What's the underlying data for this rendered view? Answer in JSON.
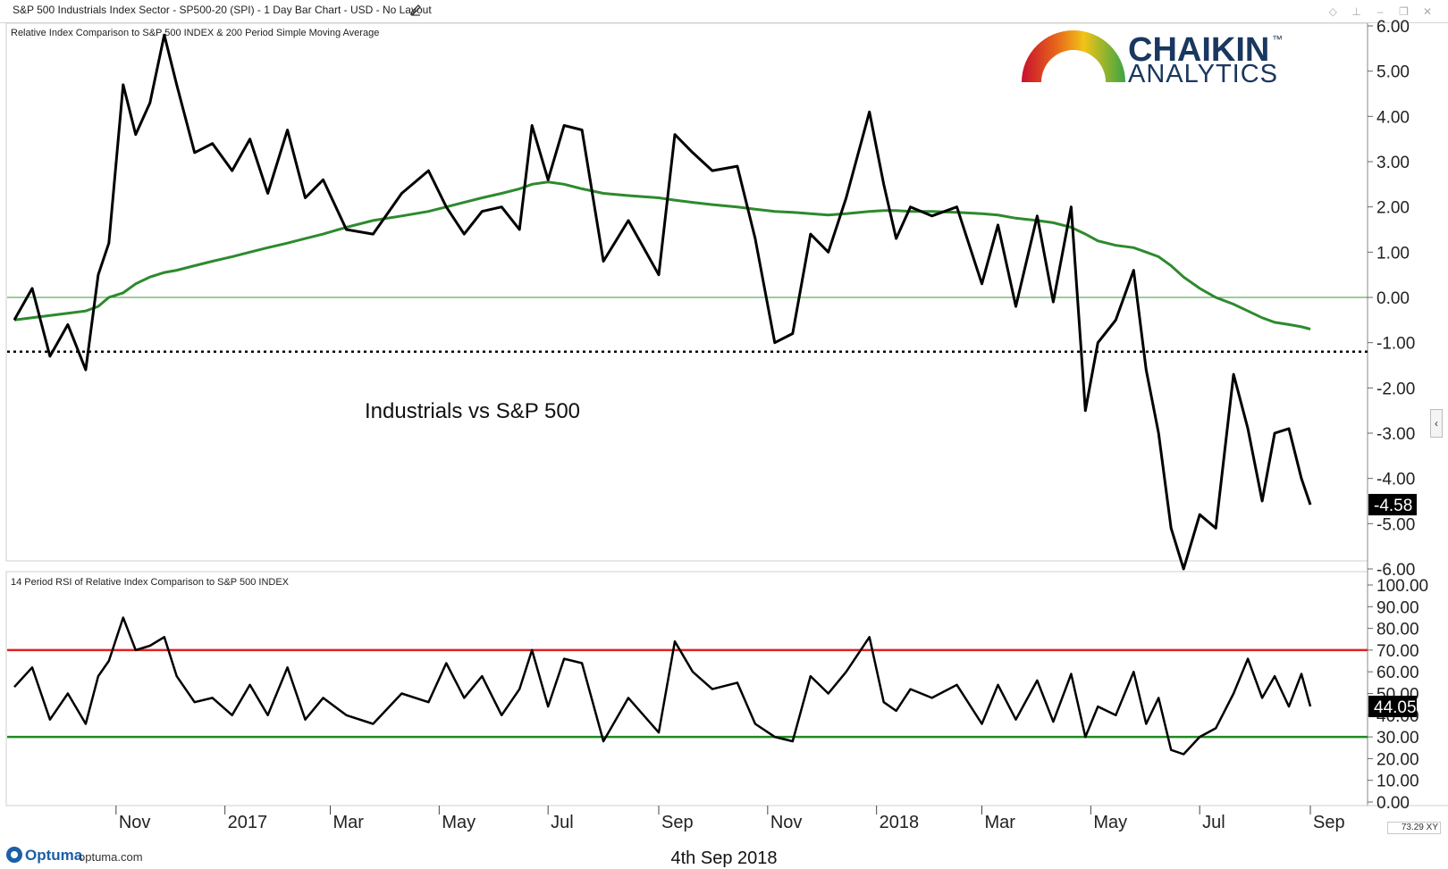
{
  "window": {
    "title": "S&P 500 Industrials Index Sector - SP500-20 (SPI) - 1 Day Bar Chart - USD - No Layout"
  },
  "logo": {
    "brand_top": "CHAIKIN",
    "brand_bottom": "ANALYTICS",
    "trademark": "™"
  },
  "footer": {
    "brand": "Optuma",
    "url": "optuma.com",
    "date": "4th Sep 2018",
    "zoom": "73.29",
    "xy_label": "XY"
  },
  "colors": {
    "price_line": "#000000",
    "sma_line": "#2d8a2d",
    "zero_line": "#3a9a3a",
    "overbought_line": "#e02020",
    "oversold_line": "#1f8a1f",
    "axis_text": "#222222"
  },
  "chart_data": [
    {
      "type": "line",
      "title": "Relative Index Comparison to S&P 500 INDEX & 200 Period Simple Moving Average",
      "annotation": "Industrials vs S&P 500",
      "ylim": [
        -6,
        6
      ],
      "y_ticks": [
        "6.00",
        "5.00",
        "4.00",
        "3.00",
        "2.00",
        "1.00",
        "0.00",
        "-1.00",
        "-2.00",
        "-3.00",
        "-4.00",
        "-5.00",
        "-6.00"
      ],
      "last_value_label": "-4.58",
      "reference_lines": [
        {
          "y": 0.0,
          "style": "solid",
          "color": "green"
        },
        {
          "y": -1.2,
          "style": "dotted",
          "color": "black"
        }
      ],
      "x_ticks": [
        "Nov",
        "2017",
        "Mar",
        "May",
        "Jul",
        "Sep",
        "Nov",
        "2018",
        "Mar",
        "May",
        "Jul",
        "Sep"
      ],
      "x": [
        "2016-09-05",
        "2016-09-15",
        "2016-09-25",
        "2016-10-05",
        "2016-10-15",
        "2016-10-22",
        "2016-10-28",
        "2016-11-05",
        "2016-11-12",
        "2016-11-20",
        "2016-11-28",
        "2016-12-05",
        "2016-12-15",
        "2016-12-25",
        "2017-01-05",
        "2017-01-15",
        "2017-01-25",
        "2017-02-05",
        "2017-02-15",
        "2017-02-25",
        "2017-03-10",
        "2017-03-25",
        "2017-04-10",
        "2017-04-25",
        "2017-05-05",
        "2017-05-15",
        "2017-05-25",
        "2017-06-05",
        "2017-06-15",
        "2017-06-22",
        "2017-07-01",
        "2017-07-10",
        "2017-07-20",
        "2017-08-01",
        "2017-08-15",
        "2017-09-01",
        "2017-09-10",
        "2017-09-20",
        "2017-10-01",
        "2017-10-15",
        "2017-10-25",
        "2017-11-05",
        "2017-11-15",
        "2017-11-25",
        "2017-12-05",
        "2017-12-15",
        "2017-12-28",
        "2018-01-05",
        "2018-01-12",
        "2018-01-20",
        "2018-02-01",
        "2018-02-15",
        "2018-03-01",
        "2018-03-10",
        "2018-03-20",
        "2018-04-01",
        "2018-04-10",
        "2018-04-20",
        "2018-04-28",
        "2018-05-05",
        "2018-05-15",
        "2018-05-25",
        "2018-06-01",
        "2018-06-08",
        "2018-06-15",
        "2018-06-22",
        "2018-07-01",
        "2018-07-10",
        "2018-07-20",
        "2018-07-28",
        "2018-08-05",
        "2018-08-12",
        "2018-08-20",
        "2018-08-27",
        "2018-09-01"
      ],
      "series": [
        {
          "values": [
            -0.5,
            0.2,
            -1.3,
            -0.6,
            -1.6,
            0.5,
            1.2,
            4.7,
            3.6,
            4.3,
            5.8,
            4.7,
            3.2,
            3.4,
            2.8,
            3.5,
            2.3,
            3.7,
            2.2,
            2.6,
            1.5,
            1.4,
            2.3,
            2.8,
            2.0,
            1.4,
            1.9,
            2.0,
            1.5,
            3.8,
            2.6,
            3.8,
            3.7,
            0.8,
            1.7,
            0.5,
            3.6,
            3.2,
            2.8,
            2.9,
            1.3,
            -1.0,
            -0.8,
            1.4,
            1.0,
            2.2,
            4.1,
            2.5,
            1.3,
            2.0,
            1.8,
            2.0,
            0.3,
            1.6,
            -0.2,
            1.8,
            -0.1,
            2.0,
            -2.5,
            -1.0,
            -0.5,
            0.6,
            -1.6,
            -3.0,
            -5.1,
            -6.0,
            -4.8,
            -5.1,
            -1.7,
            -2.9,
            -4.5,
            -3.0,
            -2.9,
            -4.0,
            -4.58
          ]
        },
        {
          "values": [
            -0.5,
            -0.45,
            -0.4,
            -0.35,
            -0.3,
            -0.2,
            0.0,
            0.1,
            0.3,
            0.45,
            0.55,
            0.6,
            0.7,
            0.8,
            0.9,
            1.0,
            1.1,
            1.2,
            1.3,
            1.4,
            1.55,
            1.7,
            1.8,
            1.9,
            2.0,
            2.1,
            2.2,
            2.3,
            2.4,
            2.5,
            2.55,
            2.5,
            2.4,
            2.3,
            2.25,
            2.2,
            2.15,
            2.1,
            2.05,
            2.0,
            1.95,
            1.9,
            1.88,
            1.85,
            1.82,
            1.85,
            1.9,
            1.92,
            1.92,
            1.9,
            1.9,
            1.88,
            1.85,
            1.82,
            1.75,
            1.7,
            1.65,
            1.55,
            1.4,
            1.25,
            1.15,
            1.1,
            1.0,
            0.9,
            0.7,
            0.45,
            0.2,
            0.0,
            -0.15,
            -0.3,
            -0.45,
            -0.55,
            -0.6,
            -0.65,
            -0.7
          ]
        }
      ]
    },
    {
      "type": "line",
      "title": "14 Period RSI of Relative Index Comparison to S&P 500 INDEX",
      "ylim": [
        0,
        100
      ],
      "y_ticks": [
        "100.00",
        "90.00",
        "80.00",
        "70.00",
        "60.00",
        "50.00",
        "40.00",
        "30.00",
        "20.00",
        "10.00",
        "0.00"
      ],
      "last_value_label": "44.05",
      "reference_lines": [
        {
          "y": 70,
          "style": "solid",
          "color": "red"
        },
        {
          "y": 30,
          "style": "solid",
          "color": "green"
        }
      ],
      "x": [
        "2016-09-05",
        "2016-09-15",
        "2016-09-25",
        "2016-10-05",
        "2016-10-15",
        "2016-10-22",
        "2016-10-28",
        "2016-11-05",
        "2016-11-12",
        "2016-11-20",
        "2016-11-28",
        "2016-12-05",
        "2016-12-15",
        "2016-12-25",
        "2017-01-05",
        "2017-01-15",
        "2017-01-25",
        "2017-02-05",
        "2017-02-15",
        "2017-02-25",
        "2017-03-10",
        "2017-03-25",
        "2017-04-10",
        "2017-04-25",
        "2017-05-05",
        "2017-05-15",
        "2017-05-25",
        "2017-06-05",
        "2017-06-15",
        "2017-06-22",
        "2017-07-01",
        "2017-07-10",
        "2017-07-20",
        "2017-08-01",
        "2017-08-15",
        "2017-09-01",
        "2017-09-10",
        "2017-09-20",
        "2017-10-01",
        "2017-10-15",
        "2017-10-25",
        "2017-11-05",
        "2017-11-15",
        "2017-11-25",
        "2017-12-05",
        "2017-12-15",
        "2017-12-28",
        "2018-01-05",
        "2018-01-12",
        "2018-01-20",
        "2018-02-01",
        "2018-02-15",
        "2018-03-01",
        "2018-03-10",
        "2018-03-20",
        "2018-04-01",
        "2018-04-10",
        "2018-04-20",
        "2018-04-28",
        "2018-05-05",
        "2018-05-15",
        "2018-05-25",
        "2018-06-01",
        "2018-06-08",
        "2018-06-15",
        "2018-06-22",
        "2018-07-01",
        "2018-07-10",
        "2018-07-20",
        "2018-07-28",
        "2018-08-05",
        "2018-08-12",
        "2018-08-20",
        "2018-08-27",
        "2018-09-01"
      ],
      "series": [
        {
          "values": [
            53,
            62,
            38,
            50,
            36,
            58,
            65,
            85,
            70,
            72,
            76,
            58,
            46,
            48,
            40,
            54,
            40,
            62,
            38,
            48,
            40,
            36,
            50,
            46,
            64,
            48,
            58,
            40,
            52,
            70,
            44,
            66,
            64,
            28,
            48,
            32,
            74,
            60,
            52,
            55,
            36,
            30,
            28,
            58,
            50,
            60,
            76,
            46,
            42,
            52,
            48,
            54,
            36,
            54,
            38,
            56,
            37,
            59,
            30,
            44,
            40,
            60,
            36,
            48,
            24,
            22,
            30,
            34,
            50,
            66,
            48,
            58,
            44,
            59,
            44.05
          ]
        }
      ]
    }
  ]
}
